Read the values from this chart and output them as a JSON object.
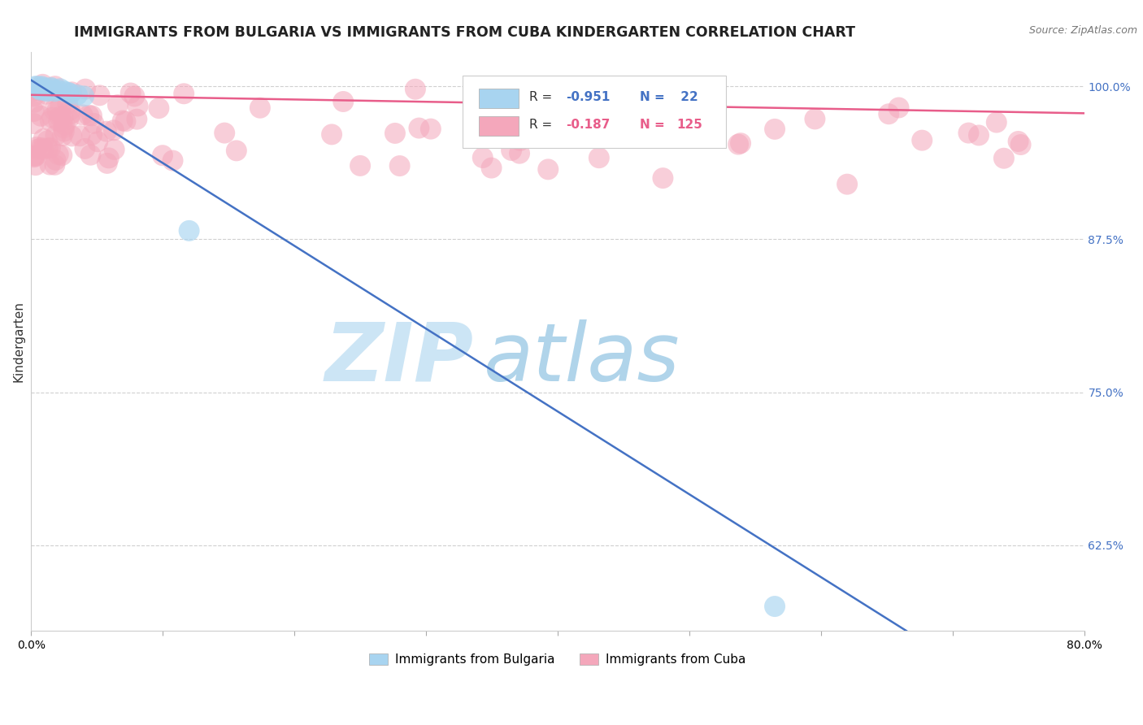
{
  "title": "IMMIGRANTS FROM BULGARIA VS IMMIGRANTS FROM CUBA KINDERGARTEN CORRELATION CHART",
  "source_text": "Source: ZipAtlas.com",
  "ylabel": "Kindergarten",
  "watermark_zip": "ZIP",
  "watermark_atlas": "atlas",
  "xlim": [
    0.0,
    0.8
  ],
  "ylim": [
    0.555,
    1.028
  ],
  "yticks": [
    0.625,
    0.75,
    0.875,
    1.0
  ],
  "ytick_labels": [
    "62.5%",
    "75.0%",
    "87.5%",
    "100.0%"
  ],
  "bulgaria_color": "#a8d4f0",
  "cuba_color": "#f4a7bb",
  "bulgaria_line_color": "#4472c4",
  "cuba_line_color": "#e85d8a",
  "title_fontsize": 12.5,
  "axis_label_fontsize": 11,
  "tick_fontsize": 10,
  "background_color": "#ffffff",
  "grid_color": "#d0d0d0",
  "watermark_zip_color": "#c8dff0",
  "watermark_atlas_color": "#b8d8e8"
}
